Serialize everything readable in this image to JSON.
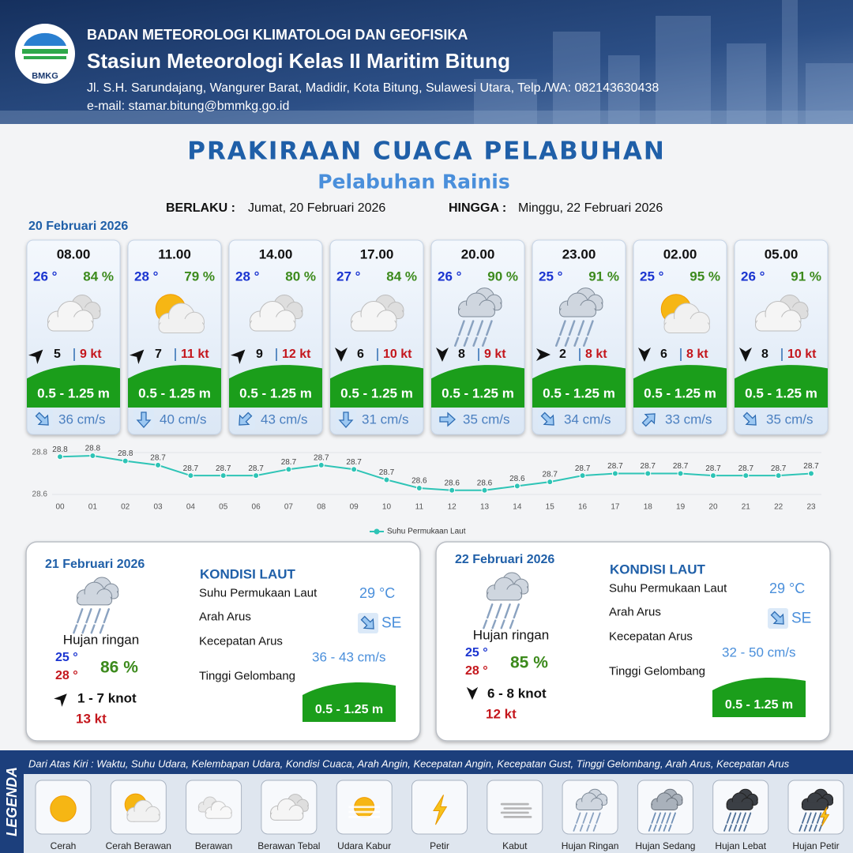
{
  "header": {
    "logo_text": "BMKG",
    "agency": "BADAN METEOROLOGI KLIMATOLOGI DAN GEOFISIKA",
    "station": "Stasiun Meteorologi Kelas II Maritim Bitung",
    "address": "Jl. S.H. Sarundajang, Wangurer Barat, Madidir, Kota Bitung, Sulawesi Utara, Telp./WA: 082143630438",
    "email": "e-mail: stamar.bitung@bmmkg.go.id"
  },
  "title": "PRAKIRAAN CUACA PELABUHAN",
  "subtitle": "Pelabuhan Rainis",
  "validity": {
    "from_label": "BERLAKU :",
    "from": "Jumat, 20 Februari 2026",
    "to_label": "HINGGA :",
    "to": "Minggu, 22 Februari 2026"
  },
  "day1": {
    "date": "20 Februari 2026",
    "cards": [
      {
        "time": "08.00",
        "temp": "26 °",
        "humidity": "84 %",
        "wind": "5",
        "gust": "9 kt",
        "wave": "0.5 - 1.25 m",
        "current": "36 cm/s"
      },
      {
        "time": "11.00",
        "temp": "28 °",
        "humidity": "79 %",
        "wind": "7",
        "gust": "11 kt",
        "wave": "0.5 - 1.25 m",
        "current": "40 cm/s"
      },
      {
        "time": "14.00",
        "temp": "28 °",
        "humidity": "80 %",
        "wind": "9",
        "gust": "12 kt",
        "wave": "0.5 - 1.25 m",
        "current": "43 cm/s"
      },
      {
        "time": "17.00",
        "temp": "27 °",
        "humidity": "84 %",
        "wind": "6",
        "gust": "10 kt",
        "wave": "0.5 - 1.25 m",
        "current": "31 cm/s"
      },
      {
        "time": "20.00",
        "temp": "26 °",
        "humidity": "90 %",
        "wind": "8",
        "gust": "9 kt",
        "wave": "0.5 - 1.25 m",
        "current": "35 cm/s"
      },
      {
        "time": "23.00",
        "temp": "25 °",
        "humidity": "91 %",
        "wind": "2",
        "gust": "8 kt",
        "wave": "0.5 - 1.25 m",
        "current": "34 cm/s"
      },
      {
        "time": "02.00",
        "temp": "25 °",
        "humidity": "95 %",
        "wind": "6",
        "gust": "8 kt",
        "wave": "0.5 - 1.25 m",
        "current": "33 cm/s"
      },
      {
        "time": "05.00",
        "temp": "26 °",
        "humidity": "91 %",
        "wind": "8",
        "gust": "10 kt",
        "wave": "0.5 - 1.25 m",
        "current": "35 cm/s"
      }
    ]
  },
  "chart_data": {
    "type": "line",
    "categories": [
      "00",
      "01",
      "02",
      "03",
      "04",
      "05",
      "06",
      "07",
      "08",
      "09",
      "10",
      "11",
      "12",
      "13",
      "14",
      "15",
      "16",
      "17",
      "18",
      "19",
      "20",
      "21",
      "22",
      "23"
    ],
    "series": [
      {
        "name": "Suhu Permukaan Laut",
        "color": "#2ec4b6",
        "values": [
          28.78,
          28.785,
          28.76,
          28.74,
          28.69,
          28.69,
          28.69,
          28.72,
          28.74,
          28.72,
          28.67,
          28.63,
          28.62,
          28.62,
          28.64,
          28.66,
          28.69,
          28.7,
          28.7,
          28.7,
          28.69,
          28.69,
          28.69,
          28.7
        ],
        "value_labels": [
          "28.8",
          "28.8",
          "28.8",
          "28.7",
          "28.7",
          "28.7",
          "28.7",
          "28.7",
          "28.7",
          "28.7",
          "28.7",
          "28.6",
          "28.6",
          "28.6",
          "28.6",
          "28.7",
          "28.7",
          "28.7",
          "28.7",
          "28.7",
          "28.7",
          "28.7",
          "28.7",
          "28.7"
        ]
      }
    ],
    "ylim": [
      28.6,
      28.8
    ],
    "yticks": [
      28.6,
      28.8
    ],
    "grid": true
  },
  "days": [
    {
      "date": "21 Februari 2026",
      "condition": "Hujan ringan",
      "temp_min": "25 °",
      "temp_max": "28 °",
      "humidity": "86 %",
      "wind": "1 - 7 knot",
      "gust": "13 kt",
      "sea_title": "KONDISI LAUT",
      "sea_rows": [
        {
          "label": "Suhu Permukaan Laut",
          "value": "29 °C"
        },
        {
          "label": "Arah Arus",
          "value": "SE"
        },
        {
          "label": "Kecepatan Arus",
          "value": "36 - 43 cm/s"
        },
        {
          "label": "Tinggi Gelombang",
          "value": "0.5 - 1.25 m"
        }
      ]
    },
    {
      "date": "22 Februari 2026",
      "condition": "Hujan ringan",
      "temp_min": "25 °",
      "temp_max": "28 °",
      "humidity": "85 %",
      "wind": "6 - 8 knot",
      "gust": "12 kt",
      "sea_title": "KONDISI LAUT",
      "sea_rows": [
        {
          "label": "Suhu Permukaan Laut",
          "value": "29 °C"
        },
        {
          "label": "Arah Arus",
          "value": "SE"
        },
        {
          "label": "Kecepatan Arus",
          "value": "32 - 50 cm/s"
        },
        {
          "label": "Tinggi Gelombang",
          "value": "0.5 - 1.25 m"
        }
      ]
    }
  ],
  "legend": {
    "title": "LEGENDA",
    "description": "Dari Atas Kiri : Waktu, Suhu Udara, Kelembapan Udara, Kondisi Cuaca, Arah Angin, Kecepatan Angin, Kecepatan Gust, Tinggi Gelombang, Arah Arus, Kecepatan Arus",
    "items": [
      "Cerah",
      "Cerah Berawan",
      "Berawan",
      "Berawan Tebal",
      "Udara Kabur",
      "Petir",
      "Kabut",
      "Hujan Ringan",
      "Hujan Sedang",
      "Hujan Lebat",
      "Hujan Petir"
    ]
  }
}
